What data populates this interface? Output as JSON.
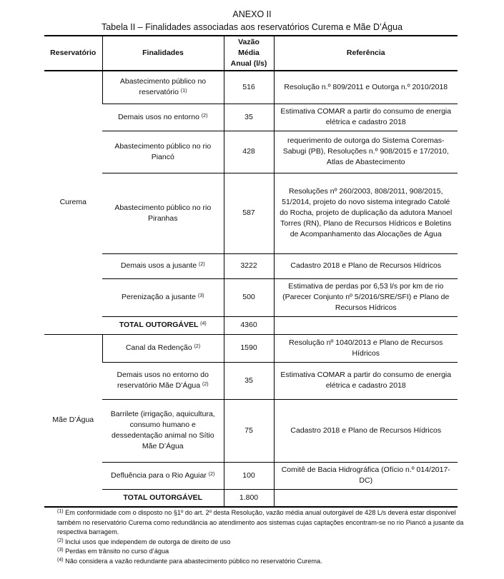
{
  "annex": "ANEXO II",
  "table_title": "Tabela II – Finalidades associadas aos reservatórios Curema e Mãe D’Água",
  "headers": [
    "Reservatório",
    "Finalidades",
    "Vazão Média Anual (l/s)",
    "Referência"
  ],
  "groups": [
    {
      "name": "Curema",
      "rows": [
        {
          "finalidade": "Abastecimento público no reservatório",
          "sup": "(1)",
          "vazao": "516",
          "referencia": "Resolução n.º 809/2011 e Outorga n.º 2010/2018"
        },
        {
          "finalidade": "Demais usos no entorno",
          "sup": "(2)",
          "vazao": "35",
          "referencia": "Estimativa COMAR a partir do consumo de energia elétrica e cadastro 2018"
        },
        {
          "finalidade": "Abastecimento público no rio Piancó",
          "sup": "",
          "vazao": "428",
          "referencia": "requerimento de outorga do Sistema Coremas-Sabugi (PB), Resoluções n.º 908/2015 e 17/2010, Atlas de Abastecimento"
        },
        {
          "finalidade": "Abastecimento público no rio Piranhas",
          "sup": "",
          "vazao": "587",
          "referencia": "Resoluções nº 260/2003, 808/2011, 908/2015, 51/2014, projeto do novo sistema integrado Catolé do Rocha, projeto de duplicação da adutora Manoel Torres (RN), Plano de Recursos Hídricos e Boletins de Acompanhamento das Alocações de Água"
        },
        {
          "finalidade": "Demais usos a jusante",
          "sup": "(2)",
          "vazao": "3222",
          "referencia": "Cadastro 2018 e Plano de Recursos Hídricos"
        },
        {
          "finalidade": "Perenização a jusante",
          "sup": "(3)",
          "vazao": "500",
          "referencia": "Estimativa de perdas por 6,53 l/s por km de rio (Parecer Conjunto nº 5/2016/SRE/SFI) e Plano de Recursos Hídricos"
        },
        {
          "finalidade": "TOTAL OUTORGÁVEL",
          "sup": "(4)",
          "vazao": "4360",
          "referencia": "",
          "bold": true
        }
      ]
    },
    {
      "name": "Mãe D’Água",
      "rows": [
        {
          "finalidade": "Canal da Redenção",
          "sup": "(2)",
          "vazao": "1590",
          "referencia": "Resolução nº 1040/2013 e Plano de Recursos Hídricos"
        },
        {
          "finalidade": "Demais usos no entorno do reservatório Mãe D’Água",
          "sup": "(2)",
          "vazao": "35",
          "referencia": "Estimativa COMAR a partir do consumo de energia elétrica e cadastro 2018"
        },
        {
          "finalidade": "Barrilete (irrigação, aquicultura, consumo humano e dessedentação animal no Sítio Mãe D’Água",
          "sup": "",
          "vazao": "75",
          "referencia": "Cadastro 2018 e Plano de Recursos Hídricos"
        },
        {
          "finalidade": "Defluência para o Rio Aguiar",
          "sup": "(2)",
          "vazao": "100",
          "referencia": "Comitê de Bacia Hidrográfica (Ofício n.º 014/2017-DC)"
        },
        {
          "finalidade": "TOTAL OUTORGÁVEL",
          "sup": "",
          "vazao": "1.800",
          "referencia": "",
          "bold": true
        }
      ]
    }
  ],
  "footnotes": [
    {
      "mark": "(1)",
      "text": "Em conformidade com o disposto no §1º do art. 2º desta Resolução, vazão média anual outorgável de 428 L/s deverá estar disponível também no reservatório Curema como redundância ao atendimento aos sistemas cujas captações encontram-se no rio Piancó a jusante da respectiva barragem."
    },
    {
      "mark": "(2)",
      "text": "Inclui usos que independem de outorga de direito de uso"
    },
    {
      "mark": "(3)",
      "text": "Perdas em trânsito no curso d’água"
    },
    {
      "mark": "(4)",
      "text": "Não considera a vazão redundante para abastecimento público no reservatório Curema."
    }
  ]
}
